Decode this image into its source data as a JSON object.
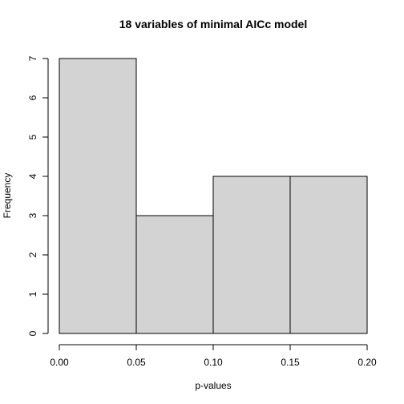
{
  "chart_data": {
    "type": "bar",
    "title": "18 variables of minimal AICc model",
    "xlabel": "p-values",
    "ylabel": "Frequency",
    "bins": [
      {
        "start": 0.0,
        "end": 0.05,
        "count": 7
      },
      {
        "start": 0.05,
        "end": 0.1,
        "count": 3
      },
      {
        "start": 0.1,
        "end": 0.15,
        "count": 4
      },
      {
        "start": 0.15,
        "end": 0.2,
        "count": 4
      }
    ],
    "xlim": [
      0,
      0.2
    ],
    "ylim": [
      0,
      7
    ],
    "x_ticks": [
      0.0,
      0.05,
      0.1,
      0.15,
      0.2
    ],
    "x_tick_labels": [
      "0.00",
      "0.05",
      "0.10",
      "0.15",
      "0.20"
    ],
    "y_ticks": [
      0,
      1,
      2,
      3,
      4,
      5,
      6,
      7
    ],
    "y_tick_labels": [
      "0",
      "1",
      "2",
      "3",
      "4",
      "5",
      "6",
      "7"
    ],
    "bar_color": "#d3d3d3",
    "grid": false,
    "legend": "none"
  }
}
